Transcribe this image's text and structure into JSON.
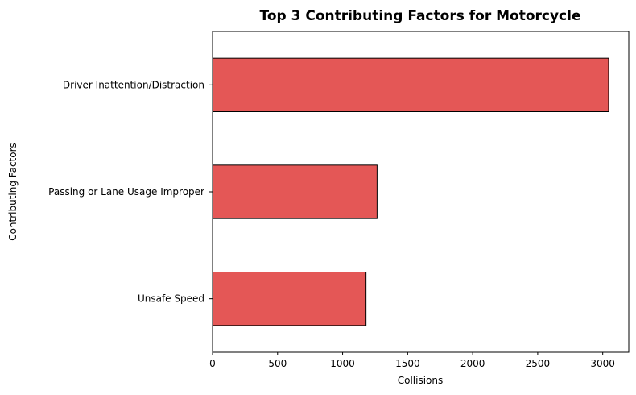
{
  "chart_data": {
    "type": "bar",
    "orientation": "horizontal",
    "title": "Top 3 Contributing Factors for Motorcycle",
    "xlabel": "Collisions",
    "ylabel": "Contributing Factors",
    "categories": [
      "Driver Inattention/Distraction",
      "Passing or Lane Usage Improper",
      "Unsafe Speed"
    ],
    "values": [
      3045,
      1265,
      1180
    ],
    "xlim": [
      0,
      3200
    ],
    "xticks": [
      0,
      500,
      1000,
      1500,
      2000,
      2500,
      3000
    ],
    "bar_color": "#e45756",
    "edge_color": "#000000",
    "grid": false,
    "legend": false
  }
}
